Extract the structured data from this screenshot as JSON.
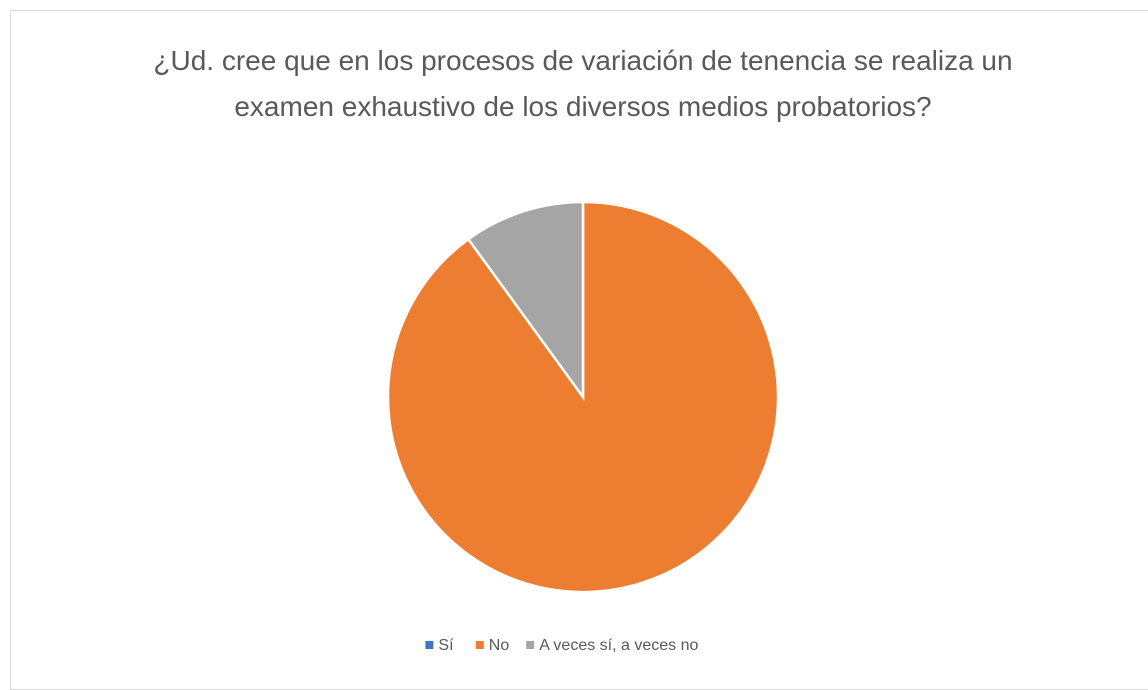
{
  "chart_data": {
    "type": "pie",
    "title": "¿Ud. cree que en los procesos de variación de tenencia se realiza un examen exhaustivo de los diversos medios probatorios?",
    "categories": [
      "Sí",
      "No",
      "A veces sí, a veces no"
    ],
    "values": [
      0,
      90,
      10
    ],
    "colors": [
      "#4472c4",
      "#ed7d31",
      "#a5a5a5"
    ],
    "legend": "bottom"
  }
}
